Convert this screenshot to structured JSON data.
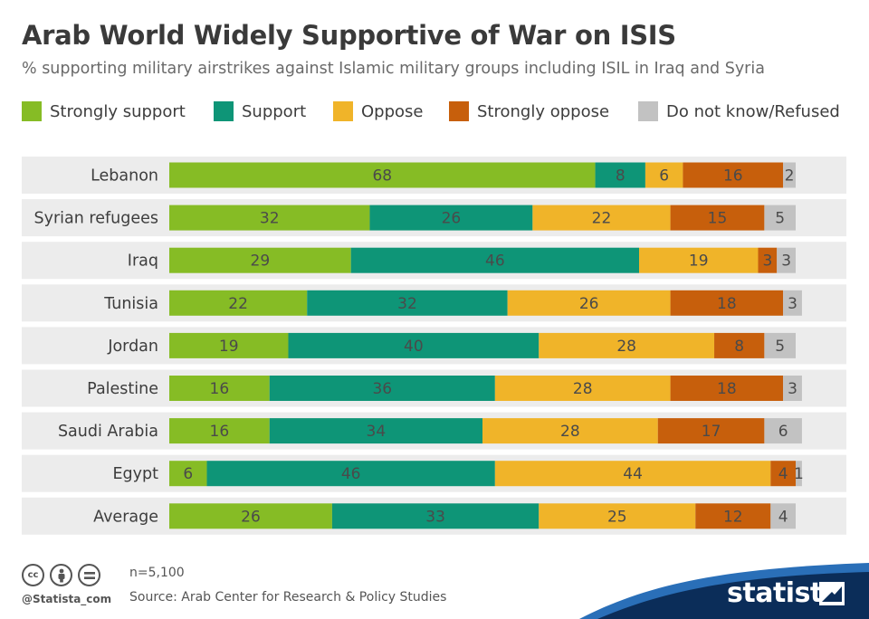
{
  "title": "Arab World Widely Supportive of War on ISIS",
  "subtitle": "% supporting military airstrikes against Islamic military groups including ISIL in Iraq and Syria",
  "legend": [
    {
      "label": "Strongly support",
      "color": "#86bc25"
    },
    {
      "label": "Support",
      "color": "#0e9577"
    },
    {
      "label": "Oppose",
      "color": "#f0b429"
    },
    {
      "label": "Strongly oppose",
      "color": "#c75f0c"
    },
    {
      "label": "Do not know/Refused",
      "color": "#c2c2c2"
    }
  ],
  "chart_data": {
    "type": "bar",
    "orientation": "horizontal",
    "stacked": true,
    "title": "Arab World Widely Supportive of War on ISIS",
    "subtitle": "% supporting military airstrikes against Islamic military groups including ISIL in Iraq and Syria",
    "categories": [
      "Lebanon",
      "Syrian refugees",
      "Iraq",
      "Tunisia",
      "Jordan",
      "Palestine",
      "Saudi Arabia",
      "Egypt",
      "Average"
    ],
    "series": [
      {
        "name": "Strongly support",
        "color": "#86bc25",
        "values": [
          68,
          32,
          29,
          22,
          19,
          16,
          16,
          6,
          26
        ]
      },
      {
        "name": "Support",
        "color": "#0e9577",
        "values": [
          8,
          26,
          46,
          32,
          40,
          36,
          34,
          46,
          33
        ]
      },
      {
        "name": "Oppose",
        "color": "#f0b429",
        "values": [
          6,
          22,
          19,
          26,
          28,
          28,
          28,
          44,
          25
        ]
      },
      {
        "name": "Strongly oppose",
        "color": "#c75f0c",
        "values": [
          16,
          15,
          3,
          18,
          8,
          18,
          17,
          4,
          12
        ]
      },
      {
        "name": "Do not know/Refused",
        "color": "#c2c2c2",
        "values": [
          2,
          5,
          3,
          3,
          5,
          3,
          6,
          1,
          4
        ]
      }
    ],
    "xlim": [
      0,
      100
    ],
    "legend_position": "top",
    "grid": false,
    "row_band_color": "#ececec",
    "label_color": "#4a4a4a"
  },
  "footer": {
    "handle": "@Statista_com",
    "sample": "n=5,100",
    "source": "Source: Arab Center for Research & Policy Studies",
    "icons": [
      "cc-icon",
      "attribution-icon",
      "no-derivatives-icon"
    ]
  },
  "brand": {
    "name": "statista",
    "color_dark": "#0b2d59",
    "color_light": "#2a6fb8"
  }
}
